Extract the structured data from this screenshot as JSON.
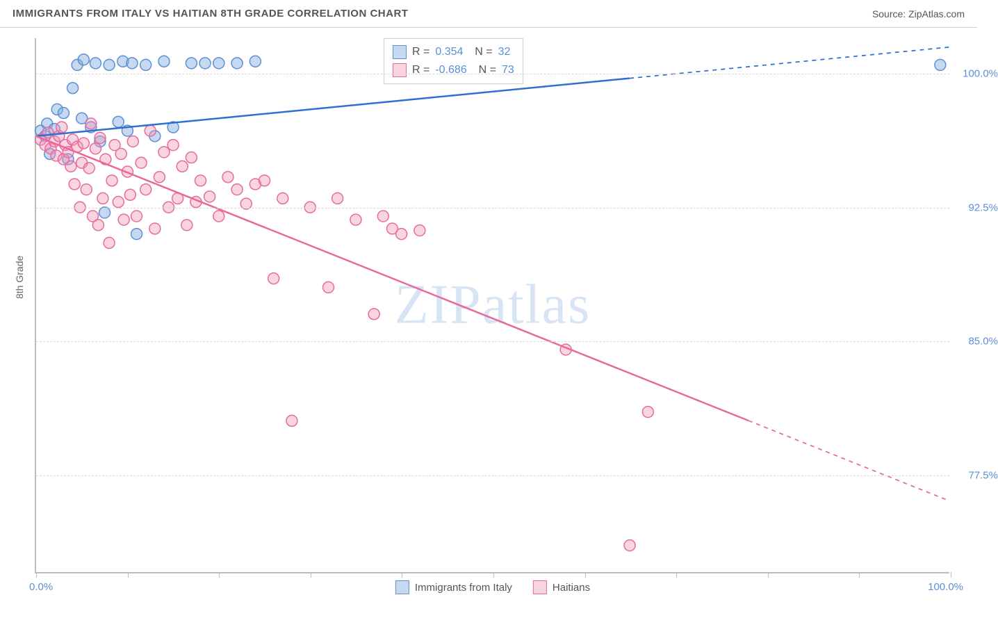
{
  "header": {
    "title": "IMMIGRANTS FROM ITALY VS HAITIAN 8TH GRADE CORRELATION CHART",
    "source_prefix": "Source: ",
    "source": "ZipAtlas.com"
  },
  "watermark": "ZIPatlas",
  "chart": {
    "type": "scatter",
    "background_color": "#ffffff",
    "grid_color": "#d8d8d8",
    "axis_color": "#bdbdbd",
    "xlim": [
      0,
      100
    ],
    "ylim": [
      72,
      102
    ],
    "x_label_min": "0.0%",
    "x_label_max": "100.0%",
    "x_ticks": [
      0,
      10,
      20,
      30,
      40,
      50,
      60,
      70,
      80,
      90,
      100
    ],
    "y_ticks": [
      {
        "v": 100.0,
        "label": "100.0%"
      },
      {
        "v": 92.5,
        "label": "92.5%"
      },
      {
        "v": 85.0,
        "label": "85.0%"
      },
      {
        "v": 77.5,
        "label": "77.5%"
      }
    ],
    "y_axis_title": "8th Grade",
    "series": [
      {
        "key": "italy",
        "name": "Immigrants from Italy",
        "color_fill": "rgba(128,170,222,0.45)",
        "color_stroke": "#5b8fd6",
        "line_color": "#2f6fd0",
        "R": "0.354",
        "N": "32",
        "regression": {
          "x1": 0,
          "y1": 96.5,
          "x2": 100,
          "y2": 101.5,
          "solid_until_x": 65
        },
        "points": [
          [
            0.5,
            96.8
          ],
          [
            1,
            96.5
          ],
          [
            1.2,
            97.2
          ],
          [
            1.5,
            95.5
          ],
          [
            2,
            96.9
          ],
          [
            2.3,
            98.0
          ],
          [
            3,
            97.8
          ],
          [
            3.5,
            95.2
          ],
          [
            4,
            99.2
          ],
          [
            4.5,
            100.5
          ],
          [
            5,
            97.5
          ],
          [
            5.2,
            100.8
          ],
          [
            6,
            97.0
          ],
          [
            6.5,
            100.6
          ],
          [
            7,
            96.2
          ],
          [
            7.5,
            92.2
          ],
          [
            8,
            100.5
          ],
          [
            9,
            97.3
          ],
          [
            9.5,
            100.7
          ],
          [
            10,
            96.8
          ],
          [
            10.5,
            100.6
          ],
          [
            11,
            91.0
          ],
          [
            12,
            100.5
          ],
          [
            13,
            96.5
          ],
          [
            14,
            100.7
          ],
          [
            15,
            97.0
          ],
          [
            17,
            100.6
          ],
          [
            18.5,
            100.6
          ],
          [
            20,
            100.6
          ],
          [
            22,
            100.6
          ],
          [
            24,
            100.7
          ],
          [
            99,
            100.5
          ]
        ]
      },
      {
        "key": "haitians",
        "name": "Haitians",
        "color_fill": "rgba(240,150,180,0.40)",
        "color_stroke": "#e86a9a",
        "line_color": "#e86a9a",
        "R": "-0.686",
        "N": "73",
        "regression": {
          "x1": 0,
          "y1": 96.5,
          "x2": 100,
          "y2": 76.0,
          "solid_until_x": 78
        },
        "points": [
          [
            0.5,
            96.3
          ],
          [
            1,
            96.0
          ],
          [
            1.3,
            96.7
          ],
          [
            1.6,
            95.8
          ],
          [
            2,
            96.2
          ],
          [
            2.2,
            95.4
          ],
          [
            2.5,
            96.5
          ],
          [
            2.8,
            97.0
          ],
          [
            3,
            95.2
          ],
          [
            3.2,
            96.0
          ],
          [
            3.5,
            95.6
          ],
          [
            3.8,
            94.8
          ],
          [
            4,
            96.3
          ],
          [
            4.2,
            93.8
          ],
          [
            4.5,
            95.9
          ],
          [
            4.8,
            92.5
          ],
          [
            5,
            95.0
          ],
          [
            5.2,
            96.1
          ],
          [
            5.5,
            93.5
          ],
          [
            5.8,
            94.7
          ],
          [
            6,
            97.2
          ],
          [
            6.2,
            92.0
          ],
          [
            6.5,
            95.8
          ],
          [
            6.8,
            91.5
          ],
          [
            7,
            96.4
          ],
          [
            7.3,
            93.0
          ],
          [
            7.6,
            95.2
          ],
          [
            8,
            90.5
          ],
          [
            8.3,
            94.0
          ],
          [
            8.6,
            96.0
          ],
          [
            9,
            92.8
          ],
          [
            9.3,
            95.5
          ],
          [
            9.6,
            91.8
          ],
          [
            10,
            94.5
          ],
          [
            10.3,
            93.2
          ],
          [
            10.6,
            96.2
          ],
          [
            11,
            92.0
          ],
          [
            11.5,
            95.0
          ],
          [
            12,
            93.5
          ],
          [
            12.5,
            96.8
          ],
          [
            13,
            91.3
          ],
          [
            13.5,
            94.2
          ],
          [
            14,
            95.6
          ],
          [
            14.5,
            92.5
          ],
          [
            15,
            96.0
          ],
          [
            15.5,
            93.0
          ],
          [
            16,
            94.8
          ],
          [
            16.5,
            91.5
          ],
          [
            17,
            95.3
          ],
          [
            17.5,
            92.8
          ],
          [
            18,
            94.0
          ],
          [
            19,
            93.1
          ],
          [
            20,
            92.0
          ],
          [
            21,
            94.2
          ],
          [
            22,
            93.5
          ],
          [
            23,
            92.7
          ],
          [
            24,
            93.8
          ],
          [
            25,
            94.0
          ],
          [
            26,
            88.5
          ],
          [
            27,
            93.0
          ],
          [
            28,
            80.5
          ],
          [
            30,
            92.5
          ],
          [
            32,
            88.0
          ],
          [
            33,
            93.0
          ],
          [
            35,
            91.8
          ],
          [
            37,
            86.5
          ],
          [
            38,
            92.0
          ],
          [
            39,
            91.3
          ],
          [
            40,
            91.0
          ],
          [
            42,
            91.2
          ],
          [
            58,
            84.5
          ],
          [
            65,
            73.5
          ],
          [
            67,
            81.0
          ]
        ]
      }
    ],
    "bottom_legend": [
      {
        "swatch_fill": "rgba(128,170,222,0.45)",
        "swatch_stroke": "#5b8fd6",
        "label": "Immigrants from Italy"
      },
      {
        "swatch_fill": "rgba(240,150,180,0.40)",
        "swatch_stroke": "#e86a9a",
        "label": "Haitians"
      }
    ],
    "marker_radius": 8,
    "line_width": 2.5
  }
}
